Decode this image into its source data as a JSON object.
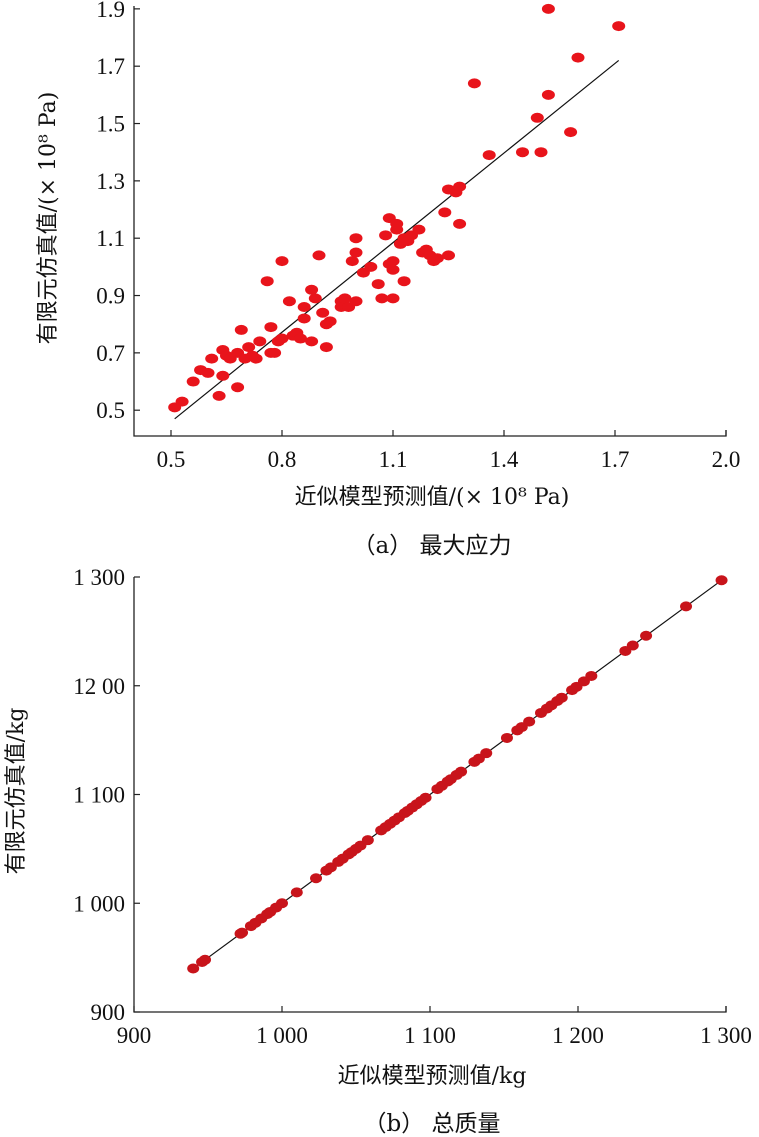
{
  "chart_data": [
    {
      "type": "scatter",
      "caption": "（a） 最大应力",
      "xlabel": "近似模型预测值/(× 10⁸ Pa)",
      "ylabel": "有限元仿真值/(× 10⁸ Pa)",
      "xlim": [
        0.4,
        2.0
      ],
      "ylim": [
        0.41,
        1.91
      ],
      "xticks": [
        "0.5",
        "0.8",
        "1.1",
        "1.4",
        "1.7",
        "2.0"
      ],
      "xtick_values": [
        0.5,
        0.8,
        1.1,
        1.4,
        1.7,
        2.0
      ],
      "yticks": [
        "0.5",
        "0.7",
        "0.9",
        "1.1",
        "1.3",
        "1.5",
        "1.7",
        "1.9"
      ],
      "ytick_values": [
        0.5,
        0.7,
        0.9,
        1.1,
        1.3,
        1.5,
        1.7,
        1.9
      ],
      "grid": false,
      "marker_color": "#e8141b",
      "fit_line": {
        "x": [
          0.51,
          1.71
        ],
        "y": [
          0.47,
          1.72
        ],
        "color": "#111111"
      },
      "points": [
        [
          0.51,
          0.51
        ],
        [
          0.53,
          0.53
        ],
        [
          0.56,
          0.6
        ],
        [
          0.58,
          0.64
        ],
        [
          0.6,
          0.63
        ],
        [
          0.61,
          0.68
        ],
        [
          0.63,
          0.55
        ],
        [
          0.64,
          0.62
        ],
        [
          0.64,
          0.71
        ],
        [
          0.65,
          0.69
        ],
        [
          0.66,
          0.68
        ],
        [
          0.68,
          0.7
        ],
        [
          0.68,
          0.58
        ],
        [
          0.69,
          0.78
        ],
        [
          0.7,
          0.68
        ],
        [
          0.71,
          0.72
        ],
        [
          0.72,
          0.69
        ],
        [
          0.73,
          0.68
        ],
        [
          0.74,
          0.74
        ],
        [
          0.76,
          0.95
        ],
        [
          0.77,
          0.79
        ],
        [
          0.77,
          0.7
        ],
        [
          0.78,
          0.7
        ],
        [
          0.79,
          0.74
        ],
        [
          0.8,
          1.02
        ],
        [
          0.8,
          0.75
        ],
        [
          0.82,
          0.88
        ],
        [
          0.83,
          0.76
        ],
        [
          0.84,
          0.77
        ],
        [
          0.85,
          0.75
        ],
        [
          0.86,
          0.82
        ],
        [
          0.86,
          0.86
        ],
        [
          0.88,
          0.92
        ],
        [
          0.88,
          0.74
        ],
        [
          0.89,
          0.89
        ],
        [
          0.9,
          1.04
        ],
        [
          0.91,
          0.84
        ],
        [
          0.92,
          0.8
        ],
        [
          0.92,
          0.72
        ],
        [
          0.93,
          0.81
        ],
        [
          0.96,
          0.88
        ],
        [
          0.96,
          0.86
        ],
        [
          0.97,
          0.89
        ],
        [
          0.98,
          0.86
        ],
        [
          0.99,
          1.02
        ],
        [
          1.0,
          1.05
        ],
        [
          1.0,
          0.88
        ],
        [
          1.0,
          1.1
        ],
        [
          1.02,
          0.98
        ],
        [
          1.04,
          1.0
        ],
        [
          1.06,
          0.94
        ],
        [
          1.07,
          0.89
        ],
        [
          1.08,
          1.11
        ],
        [
          1.09,
          1.17
        ],
        [
          1.09,
          1.01
        ],
        [
          1.1,
          0.89
        ],
        [
          1.1,
          1.02
        ],
        [
          1.1,
          0.99
        ],
        [
          1.11,
          1.15
        ],
        [
          1.11,
          1.13
        ],
        [
          1.12,
          1.08
        ],
        [
          1.13,
          0.95
        ],
        [
          1.13,
          1.1
        ],
        [
          1.14,
          1.09
        ],
        [
          1.15,
          1.11
        ],
        [
          1.17,
          1.13
        ],
        [
          1.18,
          1.05
        ],
        [
          1.19,
          1.06
        ],
        [
          1.2,
          1.04
        ],
        [
          1.21,
          1.02
        ],
        [
          1.22,
          1.03
        ],
        [
          1.24,
          1.19
        ],
        [
          1.25,
          1.04
        ],
        [
          1.25,
          1.27
        ],
        [
          1.27,
          1.26
        ],
        [
          1.28,
          1.28
        ],
        [
          1.28,
          1.15
        ],
        [
          1.32,
          1.64
        ],
        [
          1.36,
          1.39
        ],
        [
          1.45,
          1.4
        ],
        [
          1.49,
          1.52
        ],
        [
          1.5,
          1.4
        ],
        [
          1.52,
          1.9
        ],
        [
          1.52,
          1.6
        ],
        [
          1.58,
          1.47
        ],
        [
          1.6,
          1.73
        ],
        [
          1.71,
          1.84
        ]
      ]
    },
    {
      "type": "scatter",
      "caption": "（b） 总质量",
      "xlabel": "近似模型预测值/kg",
      "ylabel": "有限元仿真值/kg",
      "xlim": [
        900,
        1300
      ],
      "ylim": [
        900,
        1300
      ],
      "xticks": [
        "900",
        "1 000",
        "1 100",
        "1 200",
        "1 300"
      ],
      "xtick_values": [
        900,
        1000,
        1100,
        1200,
        1300
      ],
      "yticks": [
        "900",
        "1 000",
        "1 100",
        "12 00",
        "1 300"
      ],
      "ytick_values": [
        900,
        1000,
        1100,
        1200,
        1300
      ],
      "grid": false,
      "marker_color": "#c8141b",
      "fit_line": {
        "x": [
          938,
          1298
        ],
        "y": [
          938,
          1298
        ],
        "color": "#111111"
      },
      "points": [
        [
          940,
          940
        ],
        [
          946,
          946
        ],
        [
          948,
          948
        ],
        [
          972,
          972
        ],
        [
          973,
          973
        ],
        [
          979,
          979
        ],
        [
          982,
          982
        ],
        [
          986,
          986
        ],
        [
          990,
          990
        ],
        [
          992,
          992
        ],
        [
          996,
          996
        ],
        [
          1000,
          1000
        ],
        [
          1010,
          1010
        ],
        [
          1023,
          1023
        ],
        [
          1030,
          1030
        ],
        [
          1033,
          1033
        ],
        [
          1038,
          1038
        ],
        [
          1041,
          1041
        ],
        [
          1045,
          1045
        ],
        [
          1047,
          1047
        ],
        [
          1050,
          1050
        ],
        [
          1053,
          1053
        ],
        [
          1058,
          1058
        ],
        [
          1067,
          1067
        ],
        [
          1070,
          1070
        ],
        [
          1073,
          1073
        ],
        [
          1076,
          1076
        ],
        [
          1079,
          1079
        ],
        [
          1083,
          1083
        ],
        [
          1085,
          1085
        ],
        [
          1088,
          1088
        ],
        [
          1091,
          1091
        ],
        [
          1094,
          1094
        ],
        [
          1097,
          1097
        ],
        [
          1105,
          1105
        ],
        [
          1108,
          1108
        ],
        [
          1112,
          1112
        ],
        [
          1114,
          1114
        ],
        [
          1118,
          1118
        ],
        [
          1121,
          1121
        ],
        [
          1130,
          1130
        ],
        [
          1133,
          1133
        ],
        [
          1138,
          1138
        ],
        [
          1152,
          1152
        ],
        [
          1159,
          1159
        ],
        [
          1162,
          1162
        ],
        [
          1167,
          1167
        ],
        [
          1175,
          1175
        ],
        [
          1179,
          1179
        ],
        [
          1182,
          1182
        ],
        [
          1186,
          1186
        ],
        [
          1189,
          1189
        ],
        [
          1196,
          1196
        ],
        [
          1199,
          1199
        ],
        [
          1204,
          1204
        ],
        [
          1209,
          1209
        ],
        [
          1232,
          1232
        ],
        [
          1237,
          1237
        ],
        [
          1246,
          1246
        ],
        [
          1273,
          1273
        ],
        [
          1297,
          1297
        ]
      ]
    }
  ]
}
